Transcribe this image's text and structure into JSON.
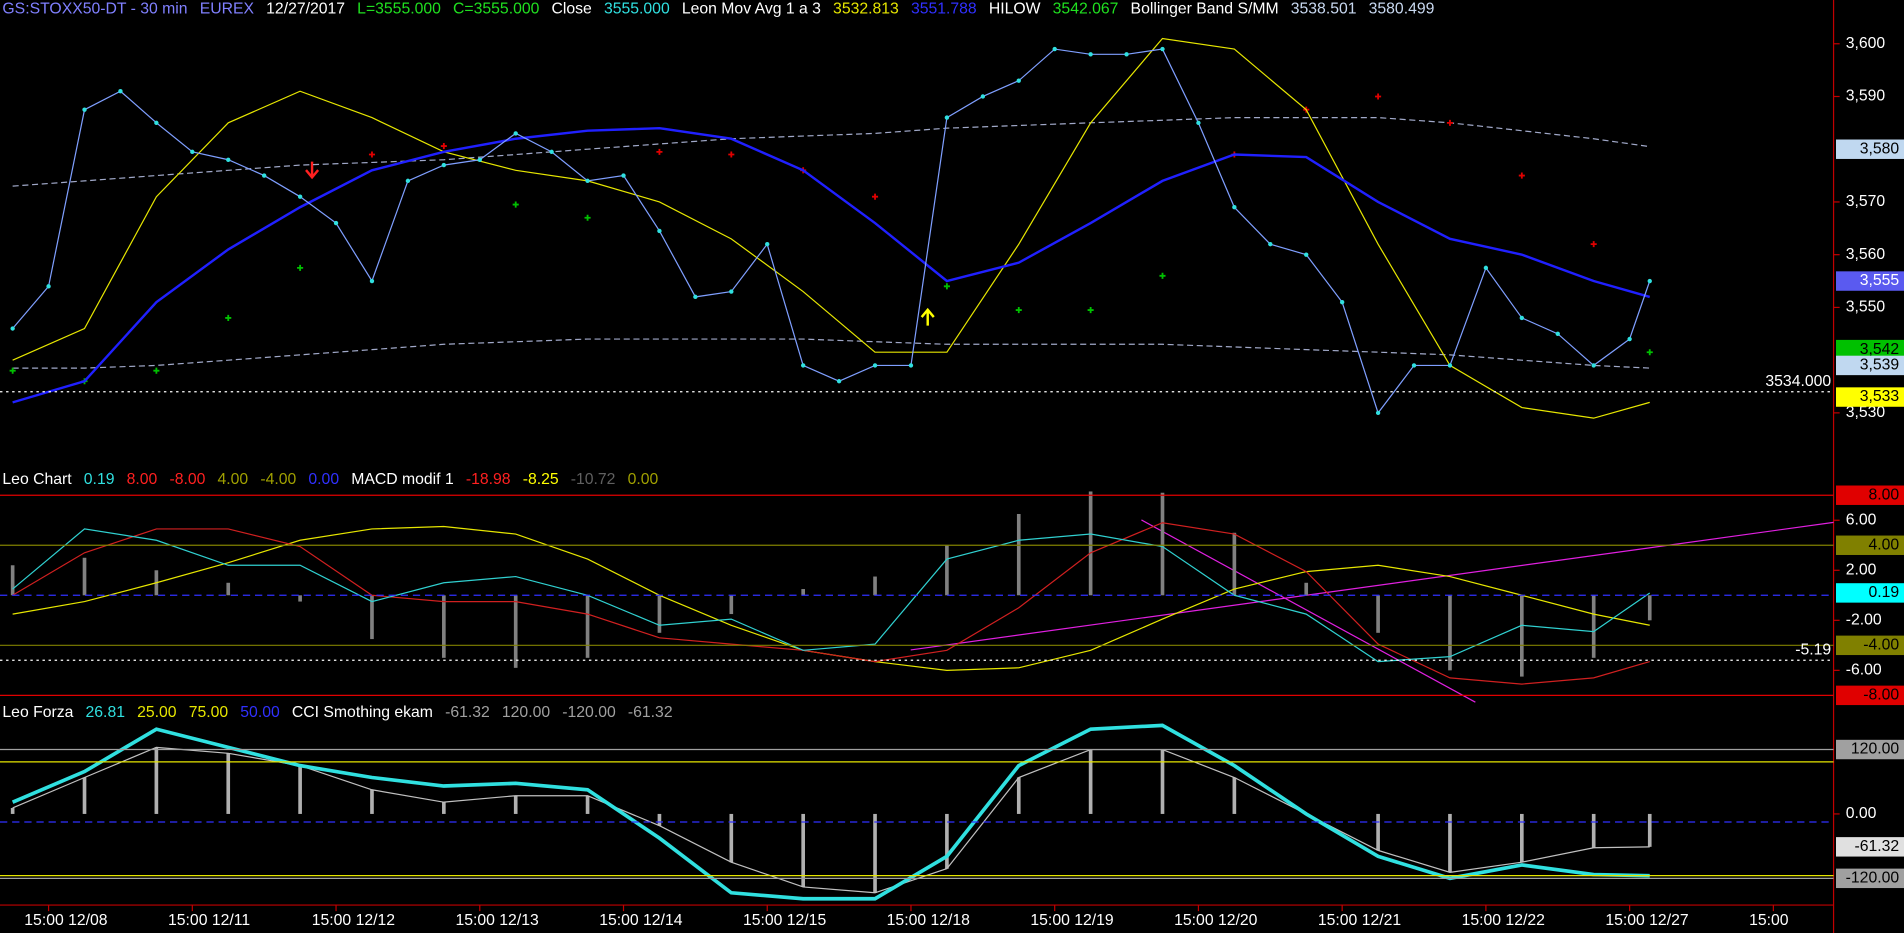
{
  "chart_data": [
    {
      "type": "line",
      "legend_items": [
        {
          "text": "GS:STOXX50-DT - 30 min",
          "color": "#8080ff"
        },
        {
          "text": "EUREX",
          "color": "#8080ff"
        },
        {
          "text": "12/27/2017",
          "color": "#ffffff"
        },
        {
          "text": "L=3555.000",
          "color": "#20e020"
        },
        {
          "text": "C=3555.000",
          "color": "#20e020"
        },
        {
          "text": "Close",
          "color": "#ffffff"
        },
        {
          "text": "3555.000",
          "color": "#30e0e0"
        },
        {
          "text": "Leon Mov Avg 1 a 3",
          "color": "#ffffff"
        },
        {
          "text": "3532.813",
          "color": "#e6e600"
        },
        {
          "text": "3551.788",
          "color": "#3030ff"
        },
        {
          "text": "HILOW",
          "color": "#ffffff"
        },
        {
          "text": "3542.067",
          "color": "#20e020"
        },
        {
          "text": "Bollinger Band S/MM",
          "color": "#ffffff"
        },
        {
          "text": "3538.501",
          "color": "#c8d8f0"
        },
        {
          "text": "3580.499",
          "color": "#c8d8f0"
        }
      ],
      "xlim": [
        -0.338,
        12.25
      ],
      "xticks": [
        {
          "value": 0,
          "label": "15:00 12/08"
        },
        {
          "value": 1,
          "label": "15:00 12/11"
        },
        {
          "value": 2,
          "label": "15:00 12/12"
        },
        {
          "value": 3,
          "label": "15:00 12/13"
        },
        {
          "value": 4,
          "label": "15:00 12/14"
        },
        {
          "value": 5,
          "label": "15:00 12/15"
        },
        {
          "value": 6,
          "label": "15:00 12/18"
        },
        {
          "value": 7,
          "label": "15:00 12/19"
        },
        {
          "value": 8,
          "label": "15:00 12/20"
        },
        {
          "value": 9,
          "label": "15:00 12/21"
        },
        {
          "value": 10,
          "label": "15:00 12/22"
        },
        {
          "value": 11,
          "label": "15:00 12/27"
        },
        {
          "value": 12,
          "label": "15:00"
        }
      ],
      "ylim": [
        3519.6,
        3608.3
      ],
      "yticks": [
        {
          "value": 3530,
          "label": "3,530"
        },
        {
          "value": 3550,
          "label": "3,550"
        },
        {
          "value": 3560,
          "label": "3,560"
        },
        {
          "value": 3570,
          "label": "3,570"
        },
        {
          "value": 3590,
          "label": "3,590"
        },
        {
          "value": 3600,
          "label": "3,600"
        }
      ],
      "x": [
        -0.25,
        0.25,
        0.75,
        1.25,
        1.75,
        2.25,
        2.75,
        3.25,
        3.75,
        4.25,
        4.75,
        5.25,
        5.75,
        6.25,
        6.75,
        7.25,
        7.75,
        8.25,
        8.75,
        9.25,
        9.75,
        10.25,
        10.75,
        11.14
      ],
      "series": [
        {
          "color": "#a0a8c8",
          "style": "dashed",
          "values": [
            3573,
            3574,
            3575,
            3576,
            3577,
            3577.5,
            3578,
            3579,
            3580,
            3581,
            3582,
            3582.5,
            3583,
            3584,
            3584.5,
            3585,
            3585.5,
            3586,
            3586,
            3586,
            3585,
            3583.5,
            3582,
            3580.5
          ]
        },
        {
          "color": "#a0a8c8",
          "style": "dashed",
          "values": [
            3538.5,
            3538.5,
            3539,
            3540,
            3541,
            3542,
            3543,
            3543.5,
            3544,
            3544,
            3544,
            3544,
            3543.5,
            3543,
            3543,
            3543,
            3543,
            3542.5,
            3542,
            3541.5,
            3541,
            3540,
            3539,
            3538.5
          ]
        },
        {
          "style": "crosses",
          "point_colors": [
            "#00c000",
            "#00c000",
            "#00c000",
            "#00c000",
            "#00c000",
            "#e00000",
            "#e00000",
            "#00c000",
            "#00c000",
            "#e00000",
            "#e00000",
            "#e00000",
            "#e00000",
            "#00c000",
            "#00c000",
            "#00c000",
            "#00c000",
            "#e00000",
            "#e00000",
            "#e00000",
            "#e00000",
            "#e00000",
            "#e00000",
            "#00c000"
          ],
          "values": [
            3538,
            3536,
            3538,
            3548,
            3557.5,
            3579,
            3580.6,
            3569.5,
            3567,
            3579.5,
            3579,
            3576,
            3571,
            3554,
            3549.5,
            3549.5,
            3556,
            3579,
            3587.5,
            3590,
            3585,
            3575,
            3562,
            3541.5
          ]
        },
        {
          "color": "#e6e600",
          "style": "line",
          "values": [
            3540,
            3546,
            3571,
            3585,
            3591,
            3586,
            3579.5,
            3576,
            3574,
            3570,
            3563,
            3553,
            3541.5,
            3541.5,
            3562,
            3585,
            3601,
            3599,
            3587.5,
            3562,
            3539,
            3531,
            3529,
            3532
          ]
        },
        {
          "color": "#2020ff",
          "style": "line",
          "width": 2,
          "values": [
            3532,
            3536,
            3551,
            3561,
            3569,
            3576,
            3579.5,
            3582,
            3583.5,
            3584,
            3582,
            3576,
            3566,
            3555,
            3558.5,
            3566,
            3574,
            3579,
            3578.5,
            3570,
            3563,
            3560,
            3555,
            3552
          ]
        },
        {
          "color": "#7f9fff",
          "style": "line-dots",
          "dot_color": "#30e0e0",
          "x": [
            -0.25,
            0,
            0.25,
            0.5,
            0.75,
            1,
            1.25,
            1.5,
            1.75,
            2,
            2.25,
            2.5,
            2.75,
            3,
            3.25,
            3.5,
            3.75,
            4,
            4.25,
            4.5,
            4.75,
            5,
            5.25,
            5.5,
            5.75,
            6,
            6.25,
            6.5,
            6.75,
            7,
            7.25,
            7.5,
            7.75,
            8,
            8.25,
            8.5,
            8.75,
            9,
            9.25,
            9.5,
            9.75,
            10,
            10.25,
            10.5,
            10.75,
            11,
            11.14
          ],
          "values": [
            3546,
            3554,
            3587.5,
            3591,
            3585,
            3579.5,
            3578,
            3575,
            3571,
            3566,
            3555,
            3574,
            3577,
            3578,
            3583,
            3579.5,
            3574,
            3575,
            3564.5,
            3552,
            3553,
            3562,
            3539,
            3536,
            3539,
            3539,
            3586,
            3590,
            3593,
            3599,
            3598,
            3598,
            3599,
            3585,
            3569,
            3562,
            3560,
            3551,
            3530,
            3539,
            3539,
            3557.5,
            3548,
            3545,
            3539,
            3544,
            3555
          ]
        }
      ],
      "hlines": [
        {
          "value": 3534,
          "label": "3534.000",
          "color": "#ffffff",
          "style": "dotted"
        }
      ],
      "tags": [
        {
          "value": 3580,
          "label": "3,580",
          "color": "#c0d8f0",
          "text_color": "#000000"
        },
        {
          "value": 3555,
          "label": "3,555",
          "color": "#5a5af0",
          "text_color": "#ffffff"
        },
        {
          "value": 3542,
          "label": "3,542",
          "color": "#00c000",
          "text_color": "#000000"
        },
        {
          "value": 3539,
          "label": "3,539",
          "color": "#c0d8f0",
          "text_color": "#000000"
        },
        {
          "value": 3533,
          "label": "3,533",
          "color": "#ffff00",
          "text_color": "#000000"
        }
      ]
    },
    {
      "type": "line",
      "legend_items": [
        {
          "text": "Leo Chart",
          "color": "#ffffff"
        },
        {
          "text": "0.19",
          "color": "#30e0e0"
        },
        {
          "text": "8.00",
          "color": "#ff2020"
        },
        {
          "text": "-8.00",
          "color": "#ff2020"
        },
        {
          "text": "4.00",
          "color": "#a0a000"
        },
        {
          "text": "-4.00",
          "color": "#a0a000"
        },
        {
          "text": "0.00",
          "color": "#3030ff"
        },
        {
          "text": "MACD modif 1",
          "color": "#ffffff"
        },
        {
          "text": "-18.98",
          "color": "#ff2020"
        },
        {
          "text": "-8.25",
          "color": "#ffff00"
        },
        {
          "text": "-10.72",
          "color": "#606060"
        },
        {
          "text": "0.00",
          "color": "#a0a000"
        }
      ],
      "ylim": [
        -8.74,
        10.2
      ],
      "yticks": [
        {
          "value": 6,
          "label": "6.00"
        },
        {
          "value": 2,
          "label": "2.00"
        },
        {
          "value": -2,
          "label": "-2.00"
        },
        {
          "value": -6,
          "label": "-6.00"
        }
      ],
      "x": [
        -0.25,
        0.25,
        0.75,
        1.25,
        1.75,
        2.25,
        2.75,
        3.25,
        3.75,
        4.25,
        4.75,
        5.25,
        5.75,
        6.25,
        6.75,
        7.25,
        7.75,
        8.25,
        8.75,
        9.25,
        9.75,
        10.25,
        10.75,
        11.14
      ],
      "series": [
        {
          "color": "#808080",
          "style": "bars",
          "values": [
            2.4,
            3.0,
            2.0,
            1.0,
            -0.5,
            -3.5,
            -5.0,
            -5.8,
            -5.0,
            -3.0,
            -1.5,
            0.5,
            1.5,
            4.0,
            6.5,
            8.3,
            8.2,
            5.0,
            1.0,
            -3.0,
            -6.0,
            -6.5,
            -5.0,
            -2.0
          ]
        },
        {
          "color": "#e6e600",
          "style": "line",
          "values": [
            -1.5,
            -0.5,
            1.0,
            2.6,
            4.4,
            5.3,
            5.5,
            4.9,
            2.9,
            0,
            -2.4,
            -4.4,
            -5.3,
            -6.0,
            -5.8,
            -4.4,
            -1.9,
            0.5,
            1.9,
            2.4,
            1.5,
            0,
            -1.5,
            -2.4
          ]
        },
        {
          "color": "#d02020",
          "style": "line",
          "values": [
            0,
            3.4,
            5.3,
            5.3,
            3.9,
            0,
            -0.5,
            -0.5,
            -1.5,
            -3.4,
            -3.9,
            -4.4,
            -5.3,
            -4.4,
            -1.0,
            3.4,
            5.8,
            4.9,
            1.9,
            -3.9,
            -6.6,
            -7.1,
            -6.6,
            -5.3
          ]
        },
        {
          "color": "#30d0d0",
          "style": "line",
          "values": [
            0.5,
            5.3,
            4.4,
            2.4,
            2.4,
            -0.5,
            1.0,
            1.5,
            0,
            -2.4,
            -1.9,
            -4.4,
            -3.9,
            2.9,
            4.4,
            4.9,
            3.9,
            0,
            -1.5,
            -5.3,
            -4.9,
            -2.4,
            -2.9,
            0.19
          ]
        }
      ],
      "hlines": [
        {
          "value": 8,
          "color": "#e00000",
          "style": "solid"
        },
        {
          "value": 4,
          "color": "#808000",
          "style": "solid"
        },
        {
          "value": 0,
          "color": "#3030ff",
          "style": "dashed"
        },
        {
          "value": -4,
          "color": "#808000",
          "style": "solid"
        },
        {
          "value": -8,
          "color": "#e00000",
          "style": "solid"
        },
        {
          "value": -5.19,
          "label": "-5.19",
          "color": "#ffffff",
          "style": "dotted"
        }
      ],
      "tags": [
        {
          "value": 8,
          "label": "8.00",
          "color": "#e00000",
          "text_color": "#000000"
        },
        {
          "value": 4,
          "label": "4.00",
          "color": "#808000",
          "text_color": "#000000"
        },
        {
          "value": 0.19,
          "label": "0.19",
          "color": "#00ffff",
          "text_color": "#000000"
        },
        {
          "value": -4,
          "label": "-4.00",
          "color": "#808000",
          "text_color": "#000000"
        },
        {
          "value": -8,
          "label": "-8.00",
          "color": "#e00000",
          "text_color": "#000000"
        }
      ]
    },
    {
      "type": "line",
      "legend_items": [
        {
          "text": "Leo Forza",
          "color": "#ffffff"
        },
        {
          "text": "26.81",
          "color": "#30e0e0"
        },
        {
          "text": "25.00",
          "color": "#e6e600"
        },
        {
          "text": "75.00",
          "color": "#e6e600"
        },
        {
          "text": "50.00",
          "color": "#3030ff"
        },
        {
          "text": "CCI Smothing ekam",
          "color": "#ffffff"
        },
        {
          "text": "-61.32",
          "color": "#a0a0a0"
        },
        {
          "text": "120.00",
          "color": "#a0a0a0"
        },
        {
          "text": "-120.00",
          "color": "#a0a0a0"
        },
        {
          "text": "-61.32",
          "color": "#a0a0a0"
        }
      ],
      "ylim": [
        -169.8,
        210.5
      ],
      "yticks": [
        {
          "value": 0,
          "label": "0.00"
        }
      ],
      "x": [
        -0.25,
        0.25,
        0.75,
        1.25,
        1.75,
        2.25,
        2.75,
        3.25,
        3.75,
        4.25,
        4.75,
        5.25,
        5.75,
        6.25,
        6.75,
        7.25,
        7.75,
        8.25,
        8.75,
        9.25,
        9.75,
        10.25,
        10.75,
        11.14
      ],
      "series": [
        {
          "color": "#b0b0b0",
          "style": "bars",
          "values": [
            11,
            68,
            124,
            113,
            90,
            45,
            22,
            34,
            34,
            -22,
            -90,
            -136,
            -147,
            -102,
            68,
            120,
            120,
            68,
            0,
            -68,
            -109,
            -90,
            -63,
            -61.32
          ]
        },
        {
          "color": "#c0c0c0",
          "style": "line",
          "values": [
            11,
            68,
            124,
            113,
            90,
            45,
            22,
            34,
            34,
            -22,
            -90,
            -136,
            -147,
            -102,
            68,
            120,
            120,
            68,
            0,
            -68,
            -109,
            -90,
            -63,
            -61.32
          ]
        },
        {
          "color": "#30e0e0",
          "style": "line",
          "width": 3,
          "values": [
            22,
            79,
            158,
            124,
            90,
            68,
            52,
            57,
            45,
            -45,
            -147,
            -158,
            -158,
            -79,
            90,
            158,
            165,
            90,
            0,
            -79,
            -120,
            -95,
            -113,
            -115
          ]
        }
      ],
      "hlines": [
        {
          "value": 120,
          "color": "#a0a0a0",
          "style": "solid"
        },
        {
          "value": 97,
          "color": "#e6e600",
          "style": "solid"
        },
        {
          "value": -15,
          "color": "#3030ff",
          "style": "dashed"
        },
        {
          "value": -115,
          "color": "#e6e600",
          "style": "solid"
        },
        {
          "value": -120,
          "color": "#a0a0a0",
          "style": "solid"
        }
      ],
      "tags": [
        {
          "value": 120,
          "label": "120.00",
          "color": "#a0a0a0",
          "text_color": "#000000"
        },
        {
          "value": -61.32,
          "label": "-61.32",
          "color": "#e0e0e0",
          "text_color": "#000000"
        },
        {
          "value": -120,
          "label": "-120.00",
          "color": "#a0a0a0",
          "text_color": "#000000"
        }
      ]
    }
  ]
}
